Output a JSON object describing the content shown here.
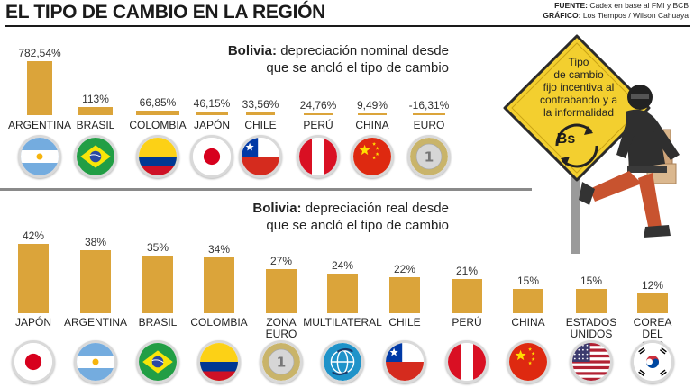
{
  "header": {
    "title": "EL TIPO DE CAMBIO EN LA REGIÓN",
    "source_label": "FUENTE:",
    "source_value": "Cadex en base al FMI y BCB",
    "graphic_label": "GRÁFICO:",
    "graphic_value": "Los Tiempos / Wilson Cahuaya"
  },
  "sign": {
    "text": "Tipo\nde cambio\nfijo incentiva al\ncontrabando y a\nla informalidad",
    "symbol": "Bs"
  },
  "colors": {
    "bar": "#dba43a",
    "sign": "#f3cf2f",
    "divider": "#8a8a8a"
  },
  "chart_data": [
    {
      "type": "bar",
      "title_bold": "Bolivia:",
      "title_line1": "depreciación nominal desde",
      "title_line2": "que se ancló el tipo de cambio",
      "categories": [
        "ARGENTINA",
        "BRASIL",
        "COLOMBIA",
        "JAPÓN",
        "CHILE",
        "PERÚ",
        "CHINA",
        "EURO"
      ],
      "values": [
        782.54,
        113,
        66.85,
        46.15,
        33.56,
        24.76,
        9.49,
        -16.31
      ],
      "value_labels": [
        "782,54%",
        "113%",
        "66,85%",
        "46,15%",
        "33,56%",
        "24,76%",
        "9,49%",
        "-16,31%"
      ],
      "flags": [
        "flag-argentina",
        "flag-brazil",
        "flag-colombia",
        "flag-japan",
        "flag-chile",
        "flag-peru",
        "flag-china",
        "euro-coin"
      ],
      "unit": "%"
    },
    {
      "type": "bar",
      "title_bold": "Bolivia:",
      "title_line1": "depreciación real desde",
      "title_line2": "que se ancló el tipo de cambio",
      "categories": [
        "JAPÓN",
        "ARGENTINA",
        "BRASIL",
        "COLOMBIA",
        "ZONA\nEURO",
        "MULTILATERAL",
        "CHILE",
        "PERÚ",
        "CHINA",
        "ESTADOS\nUNIDOS",
        "COREA\nDEL SUR"
      ],
      "values": [
        42,
        38,
        35,
        34,
        27,
        24,
        22,
        21,
        15,
        15,
        12
      ],
      "value_labels": [
        "42%",
        "38%",
        "35%",
        "34%",
        "27%",
        "24%",
        "22%",
        "21%",
        "15%",
        "15%",
        "12%"
      ],
      "flags": [
        "flag-japan",
        "flag-argentina",
        "flag-brazil",
        "flag-colombia",
        "euro-coin",
        "globe-icon",
        "flag-chile",
        "flag-peru",
        "flag-china",
        "flag-usa",
        "flag-korea"
      ],
      "unit": "%"
    }
  ]
}
